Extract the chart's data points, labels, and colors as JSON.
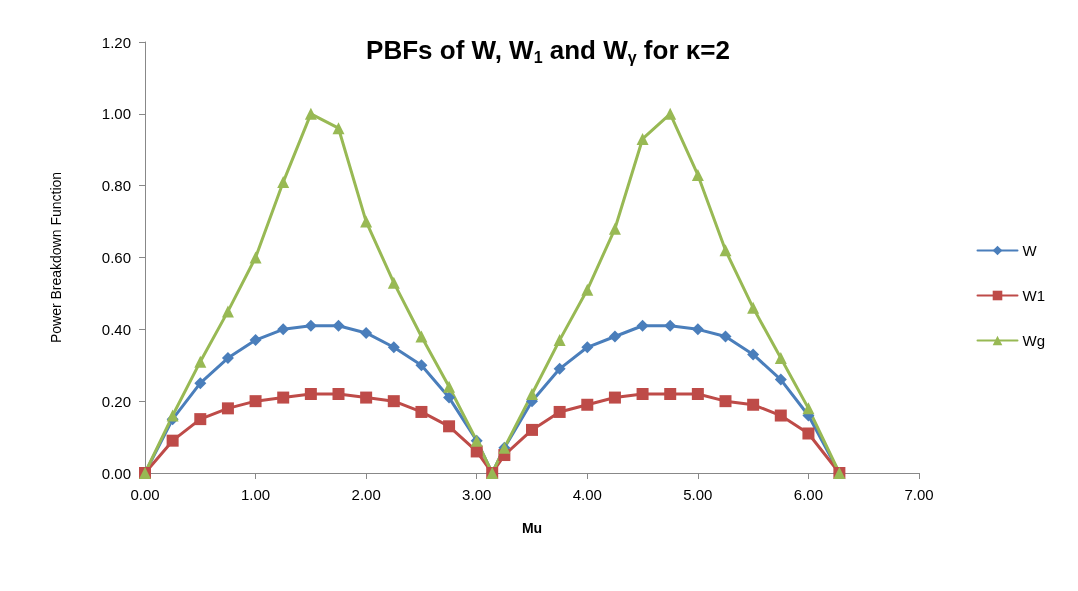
{
  "chart_data": {
    "type": "line",
    "title": "PBFs of W, W$_{1}$ and W$_{γ}$ for κ=2",
    "xlabel": "Mu",
    "ylabel": "Power Breakdown Function",
    "x": [
      0,
      0.25,
      0.5,
      0.75,
      1.0,
      1.25,
      1.5,
      1.75,
      2.0,
      2.25,
      2.5,
      2.75,
      3.0,
      3.14,
      3.25,
      3.5,
      3.75,
      4.0,
      4.25,
      4.5,
      4.75,
      5.0,
      5.25,
      5.5,
      5.75,
      6.0,
      6.28
    ],
    "series": [
      {
        "name": "W",
        "color": "#4a7ebb",
        "marker": "diamond",
        "values": [
          0,
          0.15,
          0.25,
          0.32,
          0.37,
          0.4,
          0.41,
          0.41,
          0.39,
          0.35,
          0.3,
          0.21,
          0.09,
          0,
          0.07,
          0.2,
          0.29,
          0.35,
          0.38,
          0.41,
          0.41,
          0.4,
          0.38,
          0.33,
          0.26,
          0.16,
          0
        ]
      },
      {
        "name": "W1",
        "color": "#be4b48",
        "marker": "square",
        "values": [
          0,
          0.09,
          0.15,
          0.18,
          0.2,
          0.21,
          0.22,
          0.22,
          0.21,
          0.2,
          0.17,
          0.13,
          0.06,
          0,
          0.05,
          0.12,
          0.17,
          0.19,
          0.21,
          0.22,
          0.22,
          0.22,
          0.2,
          0.19,
          0.16,
          0.11,
          0
        ]
      },
      {
        "name": "Wg",
        "color": "#98b954",
        "marker": "triangle",
        "values": [
          0,
          0.16,
          0.31,
          0.45,
          0.6,
          0.81,
          1.0,
          0.96,
          0.7,
          0.53,
          0.38,
          0.24,
          0.09,
          0,
          0.07,
          0.22,
          0.37,
          0.51,
          0.68,
          0.93,
          1.0,
          0.83,
          0.62,
          0.46,
          0.32,
          0.18,
          0
        ]
      }
    ],
    "xlim": [
      0,
      7
    ],
    "xticks": [
      {
        "value": 0,
        "label": "0.00"
      },
      {
        "value": 1,
        "label": "1.00"
      },
      {
        "value": 2,
        "label": "2.00"
      },
      {
        "value": 3,
        "label": "3.00"
      },
      {
        "value": 4,
        "label": "4.00"
      },
      {
        "value": 5,
        "label": "5.00"
      },
      {
        "value": 6,
        "label": "6.00"
      },
      {
        "value": 7,
        "label": "7.00"
      }
    ],
    "ylim": [
      0,
      1.2
    ],
    "yticks": [
      {
        "value": 0,
        "label": "0.00"
      },
      {
        "value": 0.2,
        "label": "0.20"
      },
      {
        "value": 0.4,
        "label": "0.40"
      },
      {
        "value": 0.6,
        "label": "0.60"
      },
      {
        "value": 0.8,
        "label": "0.80"
      },
      {
        "value": 1.0,
        "label": "1.00"
      },
      {
        "value": 1.2,
        "label": "1.20"
      }
    ],
    "grid": false,
    "legend": "right",
    "line_style": "solid"
  }
}
